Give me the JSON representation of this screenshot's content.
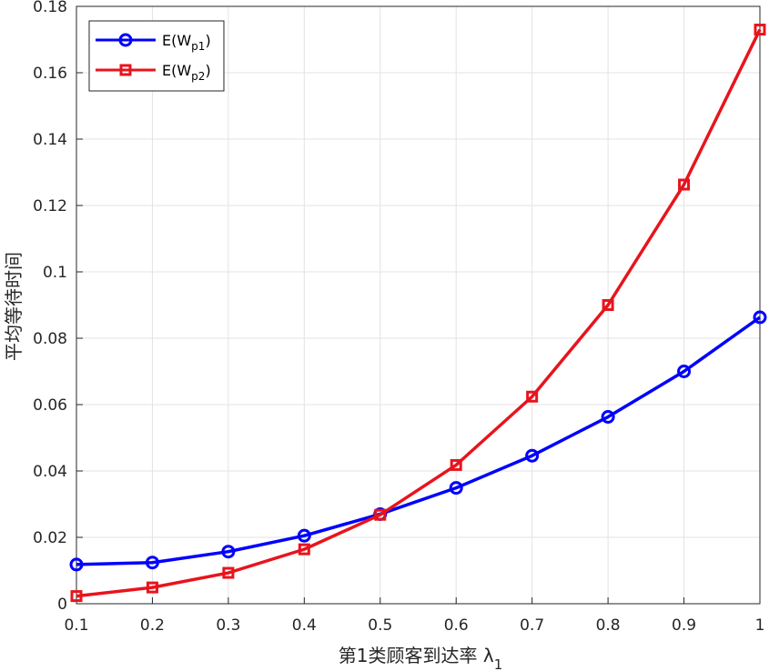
{
  "chart_data": {
    "type": "line",
    "xlabel": "第1类顾客到达率 λ",
    "xlabel_subscript": "1",
    "ylabel": "平均等待时间",
    "xlim": [
      0.1,
      1
    ],
    "ylim": [
      0,
      0.18
    ],
    "x": [
      0.1,
      0.2,
      0.3,
      0.4,
      0.5,
      0.6,
      0.7,
      0.8,
      0.9,
      1.0
    ],
    "x_tick_labels": [
      "0.1",
      "0.2",
      "0.3",
      "0.4",
      "0.5",
      "0.6",
      "0.7",
      "0.8",
      "0.9",
      "1"
    ],
    "y_tick_values": [
      0,
      0.02,
      0.04,
      0.06,
      0.08,
      0.1,
      0.12,
      0.14,
      0.16,
      0.18
    ],
    "y_tick_labels": [
      "0",
      "0.02",
      "0.04",
      "0.06",
      "0.08",
      "0.1",
      "0.12",
      "0.14",
      "0.16",
      "0.18"
    ],
    "grid": true,
    "legend_position": "top-left",
    "series": [
      {
        "name": "E(W",
        "name_subscript": "p1",
        "name_suffix": ")",
        "color": "#0000ff",
        "marker": "circle",
        "values": [
          0.0118,
          0.0124,
          0.0157,
          0.0205,
          0.027,
          0.0349,
          0.0446,
          0.0563,
          0.07,
          0.0863
        ]
      },
      {
        "name": "E(W",
        "name_subscript": "p2",
        "name_suffix": ")",
        "color": "#e8141c",
        "marker": "square",
        "values": [
          0.0023,
          0.0049,
          0.0093,
          0.0164,
          0.0268,
          0.0418,
          0.0624,
          0.09,
          0.1263,
          0.173
        ]
      }
    ]
  }
}
